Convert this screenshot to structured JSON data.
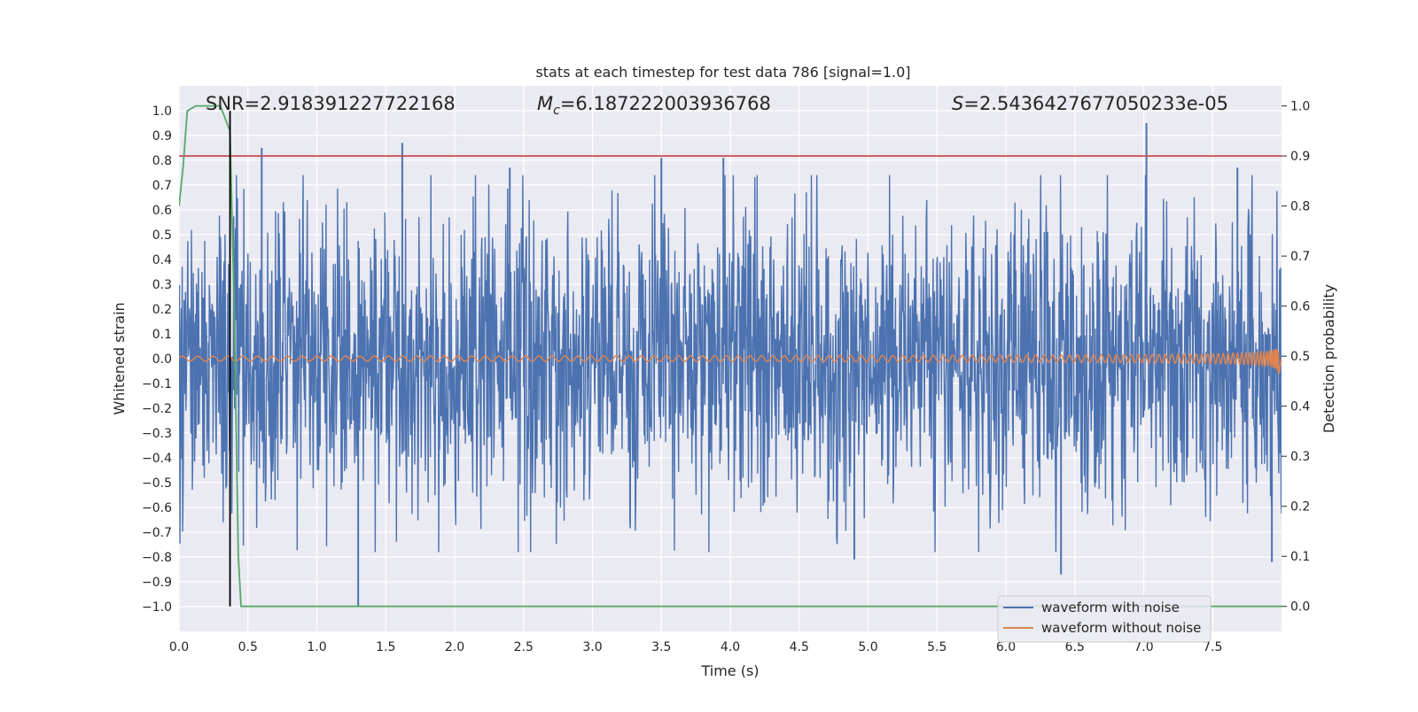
{
  "chart_data": {
    "type": "line",
    "title": "stats at each timestep for test data 786 [signal=1.0]",
    "xlabel": "Time (s)",
    "ylabel": "Whitened strain",
    "y2label": "Detection probability",
    "xlim": [
      0.0,
      8.0
    ],
    "ylim": [
      -1.1,
      1.1
    ],
    "y2lim": [
      -0.05,
      1.04
    ],
    "xticks": [
      "0.0",
      "0.5",
      "1.0",
      "1.5",
      "2.0",
      "2.5",
      "3.0",
      "3.5",
      "4.0",
      "4.5",
      "5.0",
      "5.5",
      "6.0",
      "6.5",
      "7.0",
      "7.5"
    ],
    "yticks": [
      "1.0",
      "0.9",
      "0.8",
      "0.7",
      "0.6",
      "0.5",
      "0.4",
      "0.3",
      "0.2",
      "0.1",
      "0.0",
      "−0.1",
      "−0.2",
      "−0.3",
      "−0.4",
      "−0.5",
      "−0.6",
      "−0.7",
      "−0.8",
      "−0.9",
      "−1.0"
    ],
    "y2ticks": [
      "1.0",
      "0.9",
      "0.8",
      "0.7",
      "0.6",
      "0.5",
      "0.4",
      "0.3",
      "0.2",
      "0.1",
      "0.0"
    ],
    "annotations": {
      "snr": "SNR=2.918391227722168",
      "mc_symbol": "M",
      "mc_sub": "c",
      "mc_value": "=6.187222003936768",
      "s_symbol": "S",
      "s_value": "=2.5436427677050233e-05"
    },
    "legend": {
      "placement": "bottom-right",
      "entries": [
        "waveform with noise",
        "waveform without noise"
      ]
    },
    "colors": {
      "noise": "#4c72b0",
      "clean": "#dd8452",
      "probability": "#55a868",
      "threshold": "#c44e52",
      "marker": "#000000",
      "background": "#eaeaf2"
    },
    "series": [
      {
        "name": "waveform with noise",
        "axis": "left",
        "description": "whitened strain with noise, amplitude envelope ~0.4-0.6 with spikes",
        "spikes": [
          {
            "x": 0.6,
            "y": 0.85
          },
          {
            "x": 1.3,
            "y": -1.0
          },
          {
            "x": 1.62,
            "y": 0.87
          },
          {
            "x": 2.4,
            "y": 0.77
          },
          {
            "x": 3.5,
            "y": 0.81
          },
          {
            "x": 3.95,
            "y": 0.81
          },
          {
            "x": 4.9,
            "y": -0.81
          },
          {
            "x": 6.4,
            "y": -0.87
          },
          {
            "x": 7.02,
            "y": 0.95
          },
          {
            "x": 7.68,
            "y": 0.77
          },
          {
            "x": 7.93,
            "y": -0.82
          }
        ]
      },
      {
        "name": "waveform without noise",
        "axis": "left",
        "description": "chirp signal, amplitude ~0.01 growing to ~0.1 near merger at 7.98 s",
        "amplitude_start": 0.01,
        "amplitude_end": 0.1,
        "merger_time": 7.98
      },
      {
        "name": "detection probability",
        "axis": "right",
        "x": [
          0.0,
          0.03,
          0.06,
          0.12,
          0.2,
          0.3,
          0.37,
          0.4,
          0.43,
          0.45,
          1.0,
          2.0,
          3.0,
          4.0,
          5.0,
          6.0,
          7.0,
          8.0
        ],
        "y": [
          0.8,
          0.88,
          0.99,
          1.0,
          1.0,
          1.0,
          0.95,
          0.6,
          0.1,
          0.0,
          0.0,
          0.0,
          0.0,
          0.0,
          0.0,
          0.0,
          0.0,
          0.0
        ]
      }
    ],
    "threshold": {
      "axis": "right",
      "y": 0.9
    },
    "marker_vline": {
      "x": 0.37
    }
  }
}
